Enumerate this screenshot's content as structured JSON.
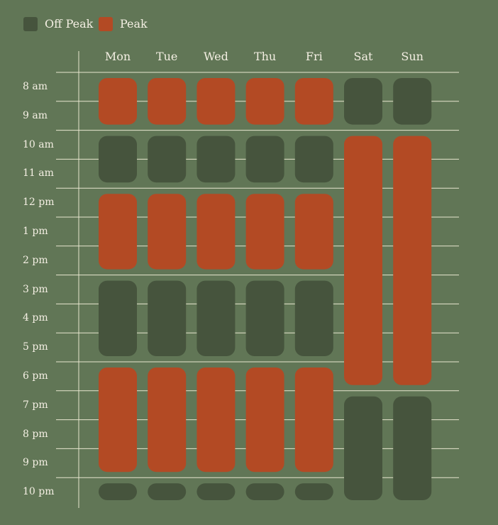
{
  "legend": [
    {
      "label": "Off Peak",
      "color": "#46543d"
    },
    {
      "label": "Peak",
      "color": "#b34a24"
    }
  ],
  "colors": {
    "background": "#617656",
    "gridline": "#e8e6cf",
    "text": "#f4efe3",
    "off_peak": "#46543d",
    "peak": "#b34a24"
  },
  "days": [
    "Mon",
    "Tue",
    "Wed",
    "Thu",
    "Fri",
    "Sat",
    "Sun"
  ],
  "times": [
    "8 am",
    "9 am",
    "10 am",
    "11 am",
    "12 pm",
    "1 pm",
    "2 pm",
    "3 pm",
    "4 pm",
    "5 pm",
    "6 pm",
    "7 pm",
    "8 pm",
    "9 pm",
    "10 pm"
  ],
  "schedule": {
    "weekday": [
      {
        "start": 0,
        "end": 2,
        "type": "peak"
      },
      {
        "start": 2,
        "end": 4,
        "type": "off_peak"
      },
      {
        "start": 4,
        "end": 7,
        "type": "peak"
      },
      {
        "start": 7,
        "end": 10,
        "type": "off_peak"
      },
      {
        "start": 10,
        "end": 14,
        "type": "peak"
      },
      {
        "start": 14,
        "end": 15,
        "type": "off_peak"
      }
    ],
    "weekend": [
      {
        "start": 0,
        "end": 2,
        "type": "off_peak"
      },
      {
        "start": 2,
        "end": 11,
        "type": "peak"
      },
      {
        "start": 11,
        "end": 15,
        "type": "off_peak"
      }
    ]
  }
}
